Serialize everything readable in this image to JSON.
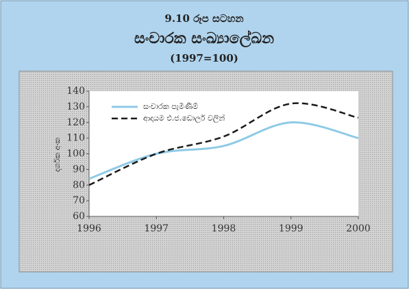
{
  "chart_data": {
    "type": "line",
    "title": "9.10 රූප සටහන",
    "subtitle": "සංචාරක සංඛ්‍යාලේඛන",
    "note": "(1997=100)",
    "y_label": "දර්ශක අංක",
    "x": [
      1996,
      1997,
      1998,
      1999,
      2000
    ],
    "xlim": [
      1996,
      2000
    ],
    "xticks": [
      1996,
      1997,
      1998,
      1999,
      2000
    ],
    "ylim": [
      60,
      140
    ],
    "yticks": [
      60,
      70,
      80,
      90,
      100,
      110,
      120,
      130,
      140
    ],
    "legend": "upper left",
    "series": [
      {
        "name": "සංචාරක පැමිණීම්",
        "color": "#8ecae6",
        "dash": false,
        "values": [
          84,
          100,
          105,
          120,
          110
        ]
      },
      {
        "name": "ආදායම එ.ජ.ඩොලර් වලින්",
        "color": "#1a1a1a",
        "dash": true,
        "values": [
          80,
          100,
          111,
          132,
          123
        ]
      }
    ]
  }
}
